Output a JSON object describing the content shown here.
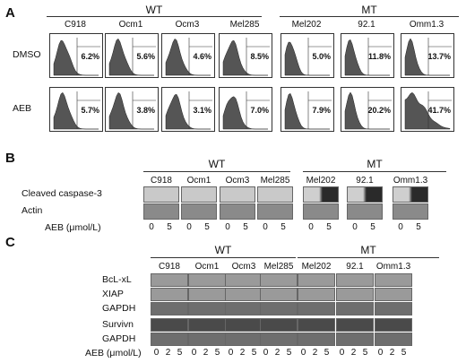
{
  "panels": {
    "A": {
      "letter": "A",
      "groups": {
        "wt": "WT",
        "mt": "MT"
      },
      "cell_lines": [
        "C918",
        "Ocm1",
        "Ocm3",
        "Mel285",
        "Mel202",
        "92.1",
        "Omm1.3"
      ],
      "rows": [
        {
          "label": "DMSO",
          "values": [
            "6.2%",
            "5.6%",
            "4.6%",
            "8.5%",
            "5.0%",
            "11.8%",
            "13.7%"
          ]
        },
        {
          "label": "AEB",
          "values": [
            "5.7%",
            "3.8%",
            "3.1%",
            "7.0%",
            "7.9%",
            "20.2%",
            "41.7%"
          ]
        }
      ]
    },
    "B": {
      "letter": "B",
      "groups": {
        "wt": "WT",
        "mt": "MT"
      },
      "cell_lines": [
        "C918",
        "Ocm1",
        "Ocm3",
        "Mel285",
        "Mel202",
        "92.1",
        "Omm1.3"
      ],
      "rows": [
        "Cleaved caspase-3",
        "Actin"
      ],
      "dose_label": "AEB (μmol/L)",
      "doses": [
        "0",
        "5"
      ]
    },
    "C": {
      "letter": "C",
      "groups": {
        "wt": "WT",
        "mt": "MT"
      },
      "cell_lines": [
        "C918",
        "Ocm1",
        "Ocm3",
        "Mel285",
        "Mel202",
        "92.1",
        "Omm1.3"
      ],
      "rows": [
        "BcL-xL",
        "XIAP",
        "GAPDH",
        "Survivn",
        "GAPDH"
      ],
      "dose_label": "AEB (μmol/L)",
      "doses": [
        "0",
        "2",
        "5"
      ]
    }
  }
}
